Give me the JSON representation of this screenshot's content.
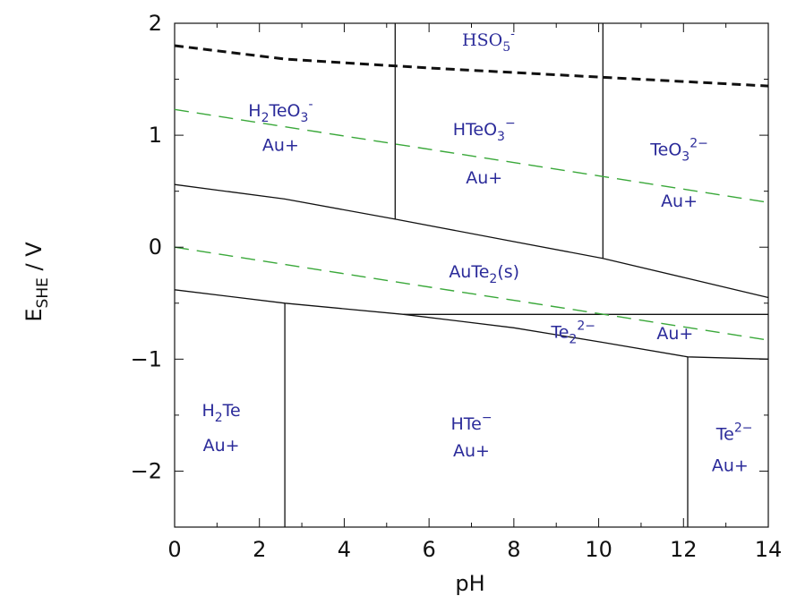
{
  "chart_data": {
    "type": "line",
    "xlabel": "pH",
    "ylabel_main": "E",
    "ylabel_sub": "SHE",
    "ylabel_unit": " / V",
    "xlim": [
      0,
      14
    ],
    "ylim": [
      -2.5,
      2
    ],
    "x_ticks": [
      0,
      2,
      4,
      6,
      8,
      10,
      12,
      14
    ],
    "x_tick_labels": [
      "0",
      "2",
      "4",
      "6",
      "8",
      "10",
      "12",
      "14"
    ],
    "y_ticks": [
      2,
      1,
      0,
      -1,
      -2
    ],
    "y_tick_labels": [
      "2",
      "1",
      "0",
      "−1",
      "−2"
    ],
    "grid": false,
    "legend": "none",
    "colors": {
      "boundary": "#111111",
      "water": "#3aa83a",
      "oxidant": "#111111",
      "label": "#2b2b9a"
    },
    "series": [
      {
        "style": "solid",
        "x": [
          0,
          2.6,
          5.2,
          8,
          10.1,
          12,
          14
        ],
        "y": [
          0.56,
          0.43,
          0.25,
          0.05,
          -0.1,
          -0.27,
          -0.45
        ]
      },
      {
        "style": "solid",
        "x": [
          0,
          2.6,
          5.4,
          8,
          10.1,
          12.1,
          14
        ],
        "y": [
          -0.38,
          -0.5,
          -0.6,
          -0.72,
          -0.85,
          -0.98,
          -1.0
        ]
      },
      {
        "style": "solid",
        "x": [
          5.4,
          14
        ],
        "y": [
          -0.6,
          -0.6
        ]
      },
      {
        "style": "solid",
        "x": [
          5.2,
          5.2
        ],
        "y": [
          2.0,
          0.25
        ]
      },
      {
        "style": "solid",
        "x": [
          10.1,
          10.1
        ],
        "y": [
          2.0,
          -0.1
        ]
      },
      {
        "style": "solid",
        "x": [
          2.6,
          2.6
        ],
        "y": [
          -0.5,
          -2.5
        ]
      },
      {
        "style": "solid",
        "x": [
          12.1,
          12.1
        ],
        "y": [
          -0.98,
          -2.5
        ]
      },
      {
        "style": "dashed-green",
        "x": [
          0,
          14
        ],
        "y": [
          1.23,
          0.4
        ]
      },
      {
        "style": "dashed-green",
        "x": [
          0,
          14
        ],
        "y": [
          0.0,
          -0.83
        ]
      },
      {
        "style": "dashed-black",
        "x": [
          0,
          2.6,
          6,
          10,
          14
        ],
        "y": [
          1.8,
          1.68,
          1.6,
          1.52,
          1.44
        ]
      }
    ],
    "annotations": [
      {
        "id": "hso5",
        "x": 7.4,
        "y": 1.8,
        "parts": [
          [
            "HSO",
            ""
          ],
          [
            "5",
            "sub"
          ],
          [
            "-",
            "sup"
          ]
        ]
      },
      {
        "id": "h2teo3",
        "x": 2.5,
        "y": 1.17,
        "parts": [
          [
            "H",
            ""
          ],
          [
            "2",
            "sub"
          ],
          [
            "TeO",
            ""
          ],
          [
            "3",
            "sub"
          ],
          [
            "-",
            "sup"
          ]
        ]
      },
      {
        "id": "au1",
        "x": 2.5,
        "y": 0.86,
        "parts": [
          [
            "Au+",
            ""
          ]
        ]
      },
      {
        "id": "hteo3",
        "x": 7.3,
        "y": 1.0,
        "parts": [
          [
            "HTeO",
            ""
          ],
          [
            "3",
            "sub"
          ],
          [
            "−",
            "sup"
          ]
        ]
      },
      {
        "id": "au2",
        "x": 7.3,
        "y": 0.57,
        "parts": [
          [
            "Au+",
            ""
          ]
        ]
      },
      {
        "id": "teo3",
        "x": 11.9,
        "y": 0.82,
        "parts": [
          [
            "TeO",
            ""
          ],
          [
            "3",
            "sub"
          ],
          [
            "2−",
            "sup"
          ]
        ]
      },
      {
        "id": "au3",
        "x": 11.9,
        "y": 0.36,
        "parts": [
          [
            "Au+",
            ""
          ]
        ]
      },
      {
        "id": "aute2",
        "x": 7.3,
        "y": -0.27,
        "parts": [
          [
            "AuTe",
            ""
          ],
          [
            "2",
            "sub"
          ],
          [
            "(s)",
            ""
          ]
        ]
      },
      {
        "id": "te2",
        "x": 9.4,
        "y": -0.81,
        "parts": [
          [
            "Te",
            ""
          ],
          [
            "2",
            "sub"
          ],
          [
            "2−",
            "sup"
          ]
        ]
      },
      {
        "id": "au4",
        "x": 11.8,
        "y": -0.82,
        "parts": [
          [
            "Au+",
            ""
          ]
        ]
      },
      {
        "id": "h2te",
        "x": 1.1,
        "y": -1.51,
        "parts": [
          [
            "H",
            ""
          ],
          [
            "2",
            "sub"
          ],
          [
            "Te",
            ""
          ]
        ]
      },
      {
        "id": "au5",
        "x": 1.1,
        "y": -1.82,
        "parts": [
          [
            "Au+",
            ""
          ]
        ]
      },
      {
        "id": "hte",
        "x": 7.0,
        "y": -1.63,
        "parts": [
          [
            "HTe",
            ""
          ],
          [
            "−",
            "sup"
          ]
        ]
      },
      {
        "id": "au6",
        "x": 7.0,
        "y": -1.87,
        "parts": [
          [
            "Au+",
            ""
          ]
        ]
      },
      {
        "id": "te",
        "x": 13.2,
        "y": -1.72,
        "parts": [
          [
            "Te",
            ""
          ],
          [
            "2−",
            "sup"
          ]
        ]
      },
      {
        "id": "au7",
        "x": 13.1,
        "y": -2.0,
        "parts": [
          [
            "Au+",
            ""
          ]
        ]
      }
    ]
  }
}
